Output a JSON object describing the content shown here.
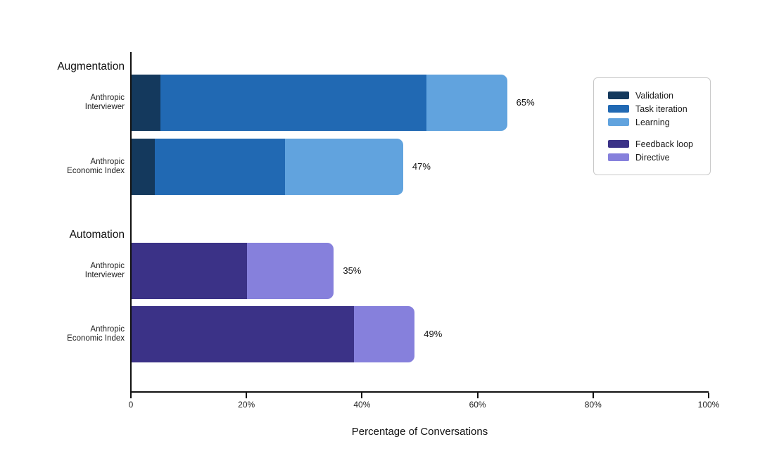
{
  "chart_data": {
    "type": "bar",
    "orientation": "horizontal",
    "stacked": true,
    "title": "",
    "xlabel": "Percentage of Conversations",
    "ylabel": "",
    "xlim": [
      0,
      100
    ],
    "grid": false,
    "x_ticks": [
      "0",
      "20%",
      "40%",
      "60%",
      "80%",
      "100%"
    ],
    "x_tick_values": [
      0,
      20,
      40,
      60,
      80,
      100
    ],
    "colors": {
      "Validation": "#14395D",
      "Task iteration": "#2169B3",
      "Learning": "#61A3DE",
      "Feedback loop": "#3B3287",
      "Directive": "#8680DC"
    },
    "legend": {
      "position": "upper right",
      "groups": [
        [
          {
            "label": "Validation",
            "color": "#14395D"
          },
          {
            "label": "Task iteration",
            "color": "#2169B3"
          },
          {
            "label": "Learning",
            "color": "#61A3DE"
          }
        ],
        [
          {
            "label": "Feedback loop",
            "color": "#3B3287"
          },
          {
            "label": "Directive",
            "color": "#8680DC"
          }
        ]
      ]
    },
    "groups": [
      {
        "label": "Augmentation",
        "rows": [
          {
            "label_lines": [
              "Anthropic",
              "Interviewer"
            ],
            "total": 65,
            "total_label": "65%",
            "segments": [
              {
                "series": "Validation",
                "value": 5
              },
              {
                "series": "Task iteration",
                "value": 46
              },
              {
                "series": "Learning",
                "value": 14
              }
            ]
          },
          {
            "label_lines": [
              "Anthropic",
              "Economic Index"
            ],
            "total": 47,
            "total_label": "47%",
            "segments": [
              {
                "series": "Validation",
                "value": 4
              },
              {
                "series": "Task iteration",
                "value": 22.5
              },
              {
                "series": "Learning",
                "value": 20.5
              }
            ]
          }
        ]
      },
      {
        "label": "Automation",
        "rows": [
          {
            "label_lines": [
              "Anthropic",
              "Interviewer"
            ],
            "total": 35,
            "total_label": "35%",
            "segments": [
              {
                "series": "Feedback loop",
                "value": 20
              },
              {
                "series": "Directive",
                "value": 15
              }
            ]
          },
          {
            "label_lines": [
              "Anthropic",
              "Economic Index"
            ],
            "total": 49,
            "total_label": "49%",
            "segments": [
              {
                "series": "Feedback loop",
                "value": 38.5
              },
              {
                "series": "Directive",
                "value": 10.5
              }
            ]
          }
        ]
      }
    ]
  }
}
